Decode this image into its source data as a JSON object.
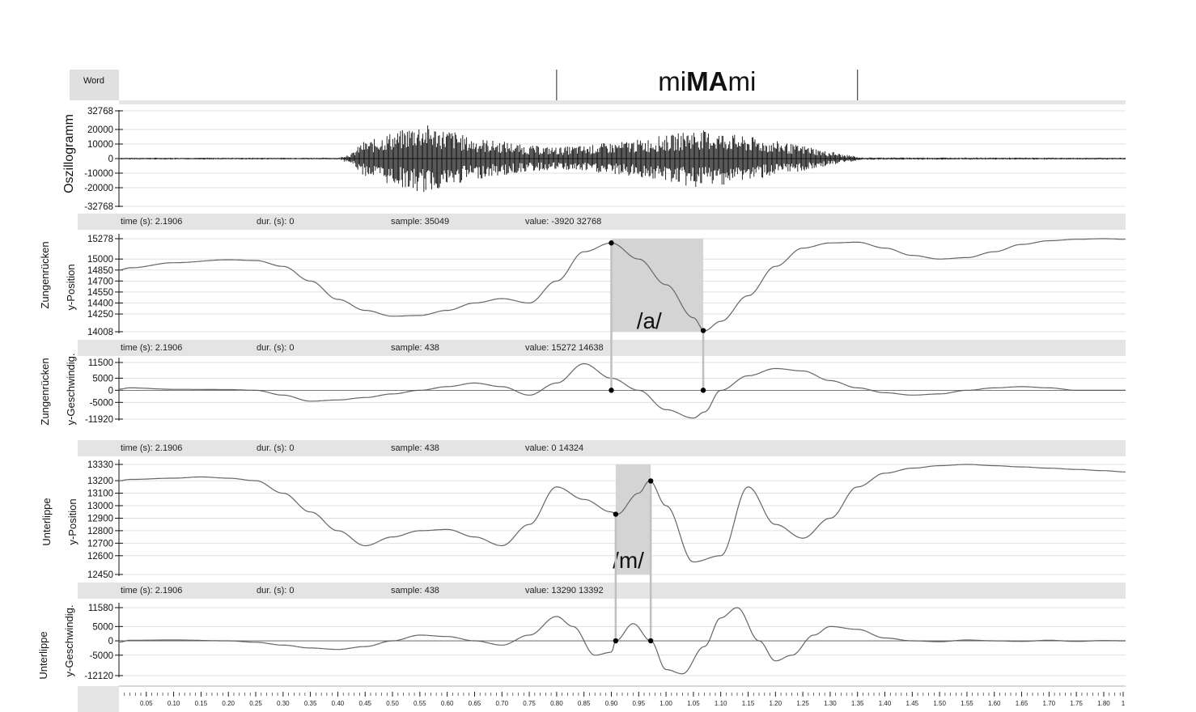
{
  "chart_data": {
    "type": "line",
    "word_tier": {
      "tier_label": "Word",
      "word_prefix": "mi",
      "word_stress": "MA",
      "word_suffix": "mi",
      "boundaries_s": [
        0.8,
        1.35
      ]
    },
    "x_axis": {
      "unit": "s",
      "range": [
        0.0,
        1.84
      ],
      "tick_labels": [
        "0.05",
        "0.10",
        "0.15",
        "0.20",
        "0.25",
        "0.30",
        "0.35",
        "0.40",
        "0.45",
        "0.50",
        "0.55",
        "0.60",
        "0.65",
        "0.70",
        "0.75",
        "0.80",
        "0.85",
        "0.90",
        "0.95",
        "1.00",
        "1.05",
        "1.10",
        "1.15",
        "1.20",
        "1.25",
        "1.30",
        "1.35",
        "1.40",
        "1.45",
        "1.50",
        "1.55",
        "1.60",
        "1.65",
        "1.70",
        "1.75",
        "1.80",
        "1"
      ]
    },
    "panels": [
      {
        "id": "oscillogram",
        "ylabel": "Oszillogramm",
        "yticks": [
          "32768",
          "20000",
          "10000",
          "0",
          "-10000",
          "-20000",
          "-32768"
        ],
        "ylim": [
          -32768,
          32768
        ],
        "envelope": {
          "x": [
            0.0,
            0.4,
            0.42,
            0.45,
            0.5,
            0.55,
            0.6,
            0.65,
            0.7,
            0.75,
            0.8,
            0.85,
            0.9,
            0.95,
            1.0,
            1.05,
            1.1,
            1.15,
            1.2,
            1.25,
            1.3,
            1.33,
            1.36,
            1.84
          ],
          "amp": [
            600,
            600,
            3000,
            12000,
            18000,
            24000,
            20000,
            14000,
            12000,
            9000,
            8000,
            9000,
            11000,
            13000,
            16000,
            20000,
            18000,
            15000,
            12000,
            9000,
            5000,
            2500,
            800,
            600
          ]
        }
      },
      {
        "id": "tongue-position",
        "ylabel_1": "Zungenrücken",
        "ylabel_2": "y-Position",
        "yticks": [
          "15278",
          "15000",
          "14850",
          "14700",
          "14550",
          "14400",
          "14250",
          "14008"
        ],
        "ylim": [
          14008,
          15278
        ],
        "x": [
          0.0,
          0.02,
          0.1,
          0.2,
          0.25,
          0.3,
          0.35,
          0.4,
          0.45,
          0.5,
          0.55,
          0.6,
          0.65,
          0.7,
          0.75,
          0.8,
          0.85,
          0.9,
          0.95,
          1.0,
          1.05,
          1.07,
          1.1,
          1.15,
          1.2,
          1.25,
          1.3,
          1.35,
          1.4,
          1.45,
          1.5,
          1.55,
          1.6,
          1.65,
          1.7,
          1.75,
          1.8,
          1.84
        ],
        "y": [
          14850,
          14880,
          14950,
          14990,
          14980,
          14900,
          14700,
          14450,
          14300,
          14220,
          14230,
          14300,
          14400,
          14460,
          14400,
          14700,
          15100,
          15220,
          15000,
          14650,
          14200,
          14020,
          14150,
          14500,
          14900,
          15150,
          15220,
          15230,
          15150,
          15050,
          15000,
          15020,
          15100,
          15200,
          15250,
          15270,
          15278,
          15270
        ],
        "annotation": "/a/",
        "highlight_s": [
          0.9,
          1.068
        ],
        "markers_s": [
          0.9,
          1.068
        ]
      },
      {
        "id": "tongue-velocity",
        "ylabel_1": "Zungenrücken",
        "ylabel_2": "y-Geschwindig.",
        "yticks": [
          "11500",
          "5000",
          "0",
          "-5000",
          "-11920"
        ],
        "ylim": [
          -11920,
          11500
        ],
        "x": [
          0.0,
          0.02,
          0.1,
          0.2,
          0.25,
          0.3,
          0.35,
          0.4,
          0.45,
          0.5,
          0.55,
          0.6,
          0.65,
          0.7,
          0.75,
          0.8,
          0.85,
          0.9,
          0.95,
          1.0,
          1.05,
          1.07,
          1.1,
          1.15,
          1.2,
          1.25,
          1.3,
          1.35,
          1.4,
          1.45,
          1.5,
          1.55,
          1.6,
          1.65,
          1.7,
          1.75,
          1.8,
          1.84
        ],
        "y": [
          500,
          1000,
          400,
          300,
          0,
          -2000,
          -4500,
          -4000,
          -3000,
          -1500,
          0,
          1500,
          3000,
          1500,
          -2000,
          3000,
          11000,
          5000,
          0,
          -8000,
          -11500,
          -9000,
          0,
          6000,
          9000,
          8000,
          4000,
          1000,
          -1000,
          -2000,
          -1500,
          0,
          1000,
          1500,
          1000,
          0,
          0,
          0
        ],
        "markers_s": [
          0.9,
          1.068
        ]
      },
      {
        "id": "lip-position",
        "ylabel_1": "Unterlippe",
        "ylabel_2": "y-Position",
        "yticks": [
          "13330",
          "13200",
          "13100",
          "13000",
          "12900",
          "12800",
          "12700",
          "12600",
          "12450"
        ],
        "ylim": [
          12450,
          13330
        ],
        "x": [
          0.0,
          0.02,
          0.1,
          0.15,
          0.2,
          0.25,
          0.3,
          0.35,
          0.4,
          0.45,
          0.5,
          0.55,
          0.6,
          0.65,
          0.7,
          0.75,
          0.8,
          0.85,
          0.9,
          0.91,
          0.95,
          0.97,
          1.0,
          1.05,
          1.1,
          1.15,
          1.2,
          1.25,
          1.3,
          1.35,
          1.4,
          1.45,
          1.5,
          1.55,
          1.6,
          1.65,
          1.7,
          1.75,
          1.8,
          1.84
        ],
        "y": [
          13200,
          13210,
          13220,
          13230,
          13220,
          13200,
          13100,
          12950,
          12800,
          12680,
          12750,
          12800,
          12810,
          12750,
          12680,
          12850,
          13150,
          13050,
          12950,
          12930,
          13100,
          13200,
          13000,
          12550,
          12600,
          13150,
          12850,
          12740,
          12900,
          13150,
          13260,
          13300,
          13320,
          13330,
          13320,
          13310,
          13300,
          13290,
          13280,
          13270
        ],
        "annotation": "/m/",
        "highlight_s": [
          0.908,
          0.972
        ],
        "markers_s": [
          0.908,
          0.972
        ]
      },
      {
        "id": "lip-velocity",
        "ylabel_1": "Unterlippe",
        "ylabel_2": "y-Geschwindig.",
        "yticks": [
          "11580",
          "5000",
          "0",
          "-5000",
          "-12120"
        ],
        "ylim": [
          -12120,
          11580
        ],
        "x": [
          0.0,
          0.02,
          0.1,
          0.2,
          0.25,
          0.3,
          0.35,
          0.4,
          0.45,
          0.5,
          0.55,
          0.6,
          0.65,
          0.7,
          0.75,
          0.8,
          0.83,
          0.87,
          0.9,
          0.908,
          0.94,
          0.972,
          1.0,
          1.03,
          1.07,
          1.1,
          1.13,
          1.17,
          1.2,
          1.23,
          1.27,
          1.3,
          1.35,
          1.4,
          1.45,
          1.5,
          1.55,
          1.6,
          1.65,
          1.7,
          1.75,
          1.8,
          1.84
        ],
        "y": [
          -500,
          200,
          300,
          0,
          -500,
          -1500,
          -2500,
          -3000,
          -2000,
          0,
          2000,
          1500,
          0,
          -1500,
          2000,
          8500,
          5000,
          -5000,
          -4000,
          0,
          6000,
          0,
          -10000,
          -11500,
          -2000,
          8000,
          11580,
          0,
          -7000,
          -5000,
          2000,
          5000,
          4000,
          1000,
          0,
          -300,
          300,
          0,
          -200,
          200,
          -200,
          100,
          0
        ]
      }
    ],
    "info_bars": [
      {
        "time_label": "time (s):",
        "time": "2.1906",
        "dur_label": "dur. (s):",
        "dur": "0",
        "sample_label": "sample:",
        "sample": "35049",
        "value_label": "value:",
        "value": "-3920 32768"
      },
      {
        "time_label": "time (s):",
        "time": "2.1906",
        "dur_label": "dur. (s):",
        "dur": "0",
        "sample_label": "sample:",
        "sample": "438",
        "value_label": "value:",
        "value": "15272 14638"
      },
      {
        "time_label": "time (s):",
        "time": "2.1906",
        "dur_label": "dur. (s):",
        "dur": "0",
        "sample_label": "sample:",
        "sample": "438",
        "value_label": "value:",
        "value": "0 14324"
      },
      {
        "time_label": "time (s):",
        "time": "2.1906",
        "dur_label": "dur. (s):",
        "dur": "0",
        "sample_label": "sample:",
        "sample": "438",
        "value_label": "value:",
        "value": "13290 13392"
      }
    ],
    "colors": {
      "signal": "#111111",
      "curve": "#666666",
      "grid": "#d8d8d8",
      "panel_bar": "#e4e4e4",
      "highlight": "#d4d4d4",
      "marker": "#000000"
    }
  }
}
